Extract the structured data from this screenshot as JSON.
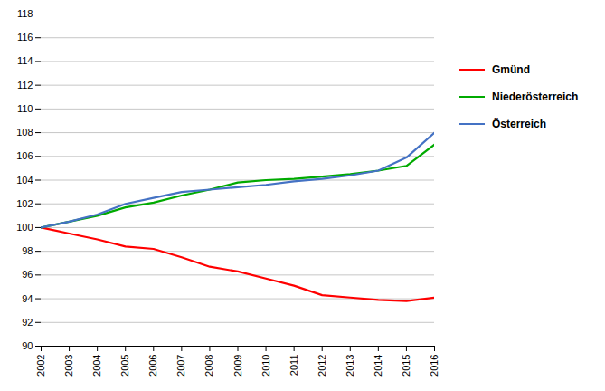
{
  "chart_data": {
    "type": "line",
    "x": [
      2002,
      2003,
      2004,
      2005,
      2006,
      2007,
      2008,
      2009,
      2010,
      2011,
      2012,
      2013,
      2014,
      2015,
      2016
    ],
    "series": [
      {
        "name": "Gmünd",
        "color": "#ff0000",
        "values": [
          100.0,
          99.5,
          99.0,
          98.4,
          98.2,
          97.5,
          96.7,
          96.3,
          95.7,
          95.1,
          94.3,
          94.1,
          93.9,
          93.8,
          94.1
        ]
      },
      {
        "name": "Niederösterreich",
        "color": "#00aa00",
        "values": [
          100.0,
          100.5,
          101.0,
          101.7,
          102.1,
          102.7,
          103.2,
          103.8,
          104.0,
          104.1,
          104.3,
          104.5,
          104.8,
          105.2,
          107.0
        ]
      },
      {
        "name": "Österreich",
        "color": "#4472c4",
        "values": [
          100.0,
          100.5,
          101.1,
          102.0,
          102.5,
          103.0,
          103.2,
          103.4,
          103.6,
          103.9,
          104.1,
          104.4,
          104.8,
          105.9,
          108.0
        ]
      }
    ],
    "xlim": [
      2002,
      2016
    ],
    "xticks": [
      2002,
      2003,
      2004,
      2005,
      2006,
      2007,
      2008,
      2009,
      2010,
      2011,
      2012,
      2013,
      2014,
      2015,
      2016
    ],
    "ylim": [
      90,
      118
    ],
    "yticks": [
      90,
      92,
      94,
      96,
      98,
      100,
      102,
      104,
      106,
      108,
      110,
      112,
      114,
      116,
      118
    ],
    "grid": true,
    "legend": "right"
  }
}
